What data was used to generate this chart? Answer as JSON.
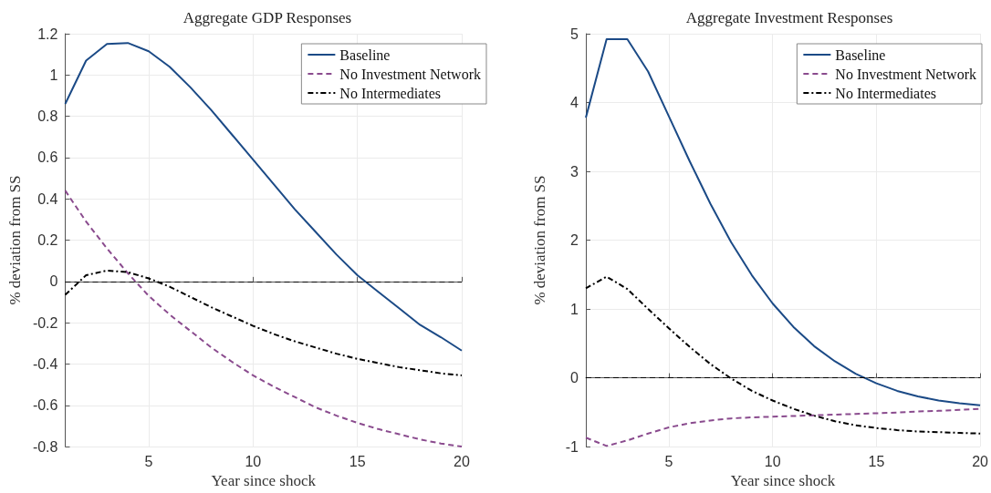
{
  "chart_data": [
    {
      "type": "line",
      "title": "Aggregate GDP Responses",
      "xlabel": "Year since shock",
      "ylabel": "% deviation from SS",
      "x": [
        1,
        2,
        3,
        4,
        5,
        6,
        7,
        8,
        9,
        10,
        11,
        12,
        13,
        14,
        15,
        16,
        17,
        18,
        19,
        20
      ],
      "xlim": [
        1,
        20
      ],
      "xticks": [
        5,
        10,
        15,
        20
      ],
      "ylim": [
        -0.8,
        1.2
      ],
      "yticks": [
        -0.8,
        -0.6,
        -0.4,
        -0.2,
        0,
        0.2,
        0.4,
        0.6,
        0.8,
        1,
        1.2
      ],
      "grid": true,
      "legend": "top right",
      "marker": "none",
      "ref_lines": [
        {
          "axis": "y",
          "value": 0,
          "color": "#000000",
          "line_style": "dashed"
        }
      ],
      "series": [
        {
          "name": "Baseline",
          "color": "#1b4a86",
          "line_style": "solid",
          "values": [
            0.86,
            1.07,
            1.15,
            1.155,
            1.115,
            1.04,
            0.94,
            0.83,
            0.71,
            0.59,
            0.47,
            0.35,
            0.24,
            0.13,
            0.03,
            -0.05,
            -0.13,
            -0.21,
            -0.27,
            -0.335
          ]
        },
        {
          "name": "No Investment Network",
          "color": "#8a4b8e",
          "line_style": "dashed",
          "values": [
            0.44,
            0.29,
            0.16,
            0.04,
            -0.07,
            -0.16,
            -0.24,
            -0.32,
            -0.39,
            -0.455,
            -0.51,
            -0.56,
            -0.61,
            -0.65,
            -0.685,
            -0.715,
            -0.74,
            -0.765,
            -0.785,
            -0.8
          ]
        },
        {
          "name": "No Intermediates",
          "color": "#000000",
          "line_style": "dashdot",
          "values": [
            -0.065,
            0.03,
            0.053,
            0.045,
            0.015,
            -0.025,
            -0.075,
            -0.125,
            -0.17,
            -0.215,
            -0.255,
            -0.29,
            -0.32,
            -0.35,
            -0.375,
            -0.395,
            -0.415,
            -0.43,
            -0.445,
            -0.455
          ]
        }
      ]
    },
    {
      "type": "line",
      "title": "Aggregate Investment Responses",
      "xlabel": "Year since shock",
      "ylabel": "% deviation from SS",
      "x": [
        1,
        2,
        3,
        4,
        5,
        6,
        7,
        8,
        9,
        10,
        11,
        12,
        13,
        14,
        15,
        16,
        17,
        18,
        19,
        20
      ],
      "xlim": [
        1,
        20
      ],
      "xticks": [
        5,
        10,
        15,
        20
      ],
      "ylim": [
        -1,
        5
      ],
      "yticks": [
        -1,
        0,
        1,
        2,
        3,
        4,
        5
      ],
      "grid": true,
      "legend": "top right",
      "marker": "none",
      "ref_lines": [
        {
          "axis": "y",
          "value": 0,
          "color": "#000000",
          "line_style": "dashed"
        }
      ],
      "series": [
        {
          "name": "Baseline",
          "color": "#1b4a86",
          "line_style": "solid",
          "values": [
            3.78,
            4.92,
            4.92,
            4.45,
            3.8,
            3.15,
            2.53,
            1.97,
            1.49,
            1.08,
            0.74,
            0.46,
            0.24,
            0.06,
            -0.08,
            -0.19,
            -0.27,
            -0.33,
            -0.37,
            -0.4
          ]
        },
        {
          "name": "No Investment Network",
          "color": "#8a4b8e",
          "line_style": "dashed",
          "values": [
            -0.87,
            -0.99,
            -0.91,
            -0.81,
            -0.72,
            -0.66,
            -0.62,
            -0.59,
            -0.575,
            -0.565,
            -0.555,
            -0.545,
            -0.535,
            -0.525,
            -0.515,
            -0.505,
            -0.49,
            -0.48,
            -0.465,
            -0.45
          ]
        },
        {
          "name": "No Intermediates",
          "color": "#000000",
          "line_style": "dashdot",
          "values": [
            1.3,
            1.47,
            1.29,
            1.0,
            0.72,
            0.45,
            0.2,
            -0.01,
            -0.19,
            -0.33,
            -0.45,
            -0.55,
            -0.63,
            -0.69,
            -0.73,
            -0.76,
            -0.78,
            -0.79,
            -0.8,
            -0.81
          ]
        }
      ]
    }
  ]
}
